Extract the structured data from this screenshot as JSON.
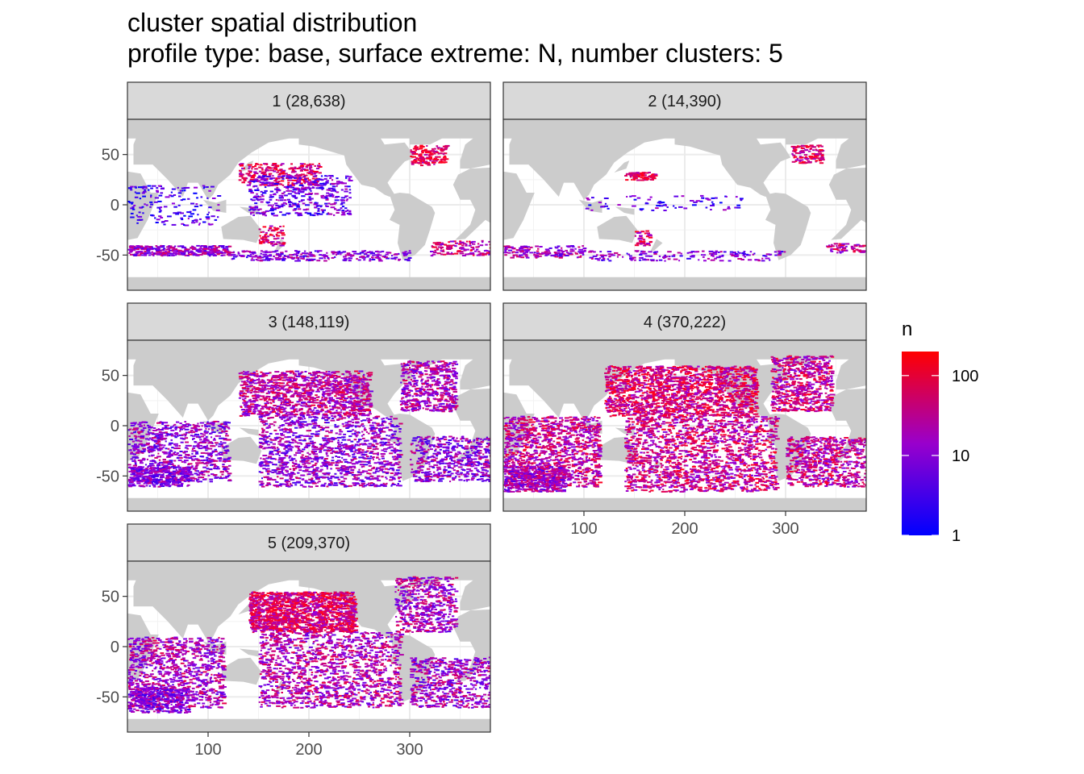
{
  "chart_data": {
    "type": "heatmap",
    "title": "cluster spatial distribution",
    "subtitle": "profile type: base, surface extreme: N, number clusters: 5",
    "xlabel": "",
    "ylabel": "",
    "xlim": [
      20,
      380
    ],
    "ylim": [
      -85,
      85
    ],
    "x_ticks": [
      100,
      200,
      300
    ],
    "y_ticks": [
      50,
      0,
      -50
    ],
    "x_tick_labels": [
      "100",
      "200",
      "300"
    ],
    "y_tick_labels": [
      "50",
      "0",
      "-50"
    ],
    "grid": true,
    "land_color": "#cccccc",
    "facets": [
      {
        "id": "1",
        "label": "1 (28,638)",
        "count": 28638
      },
      {
        "id": "2",
        "label": "2 (14,390)",
        "count": 14390
      },
      {
        "id": "3",
        "label": "3 (148,119)",
        "count": 148119
      },
      {
        "id": "4",
        "label": "4 (370,222)",
        "count": 370222
      },
      {
        "id": "5",
        "label": "5 (209,370)",
        "count": 209370
      }
    ],
    "legend": {
      "title": "n",
      "scale": "log10",
      "range": [
        1,
        200
      ],
      "breaks": [
        1,
        10,
        100
      ],
      "break_labels": [
        "1",
        "10",
        "100"
      ],
      "low_color": "#0000ff",
      "high_color": "#ff0000",
      "position": "right"
    }
  }
}
